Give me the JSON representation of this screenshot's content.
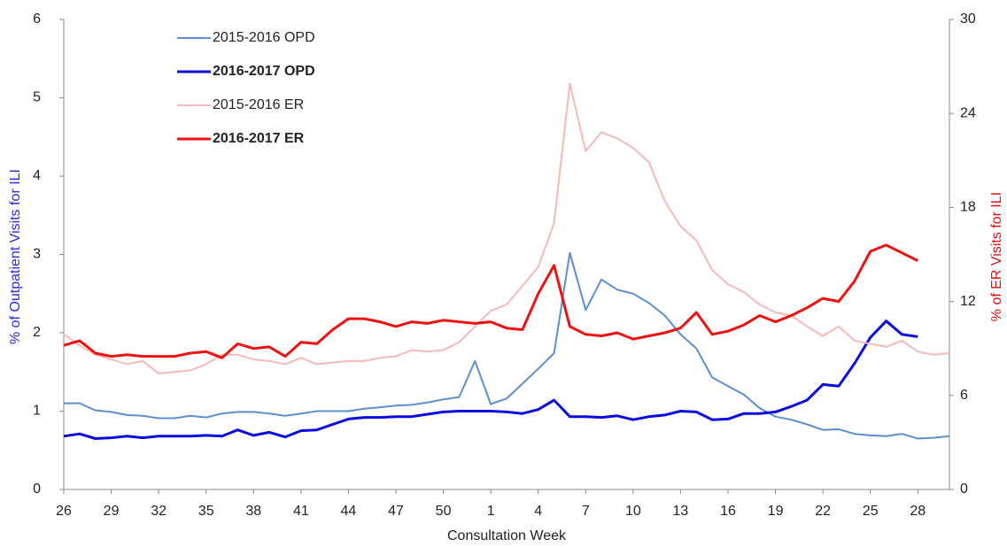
{
  "chart_data": {
    "type": "line",
    "x_label": "Consultation Week",
    "y_label": "% of Outpatient Visits for ILI",
    "y2_label": "% of ER Visits for ILI",
    "categories": [
      26,
      null,
      null,
      29,
      null,
      null,
      32,
      null,
      null,
      35,
      null,
      null,
      38,
      null,
      null,
      41,
      null,
      null,
      44,
      null,
      null,
      47,
      null,
      null,
      50,
      null,
      null,
      1,
      null,
      null,
      4,
      null,
      null,
      7,
      null,
      null,
      10,
      null,
      null,
      13,
      null,
      null,
      16,
      null,
      null,
      19,
      null,
      null,
      22,
      null,
      null,
      25,
      null,
      null,
      28,
      null,
      null
    ],
    "ylim": [
      0,
      6
    ],
    "yticks": [
      0,
      1,
      2,
      3,
      4,
      5,
      6
    ],
    "y2lim": [
      0,
      30
    ],
    "y2ticks": [
      0,
      6,
      12,
      18,
      24,
      30
    ],
    "grid": false,
    "legend": "upper-left",
    "series": [
      {
        "name": "2015-2016 OPD",
        "color": "#5b8fd0",
        "width": 2,
        "values": [
          1.1,
          1.1,
          1.01,
          0.99,
          0.95,
          0.94,
          0.91,
          0.91,
          0.94,
          0.92,
          0.97,
          0.99,
          0.99,
          0.97,
          0.94,
          0.97,
          1.0,
          1.0,
          1.0,
          1.03,
          1.05,
          1.07,
          1.08,
          1.11,
          1.15,
          1.18,
          1.64,
          1.09,
          1.16,
          1.35,
          1.54,
          1.74,
          3.02,
          2.29,
          2.68,
          2.55,
          2.5,
          2.38,
          2.22,
          1.98,
          1.8,
          1.43,
          1.32,
          1.21,
          1.04,
          0.93,
          0.89,
          0.83,
          0.76,
          0.77,
          0.71,
          0.69,
          0.68,
          0.71,
          0.65,
          0.66,
          0.68
        ]
      },
      {
        "name": "2016-2017 OPD",
        "color": "#0a0ae0",
        "width": 3,
        "values": [
          0.68,
          0.71,
          0.65,
          0.66,
          0.68,
          0.66,
          0.68,
          0.68,
          0.68,
          0.69,
          0.68,
          0.76,
          0.69,
          0.73,
          0.67,
          0.75,
          0.76,
          0.83,
          0.9,
          0.92,
          0.92,
          0.93,
          0.93,
          0.96,
          0.99,
          1.0,
          1.0,
          1.0,
          0.99,
          0.97,
          1.02,
          1.14,
          0.93,
          0.93,
          0.92,
          0.94,
          0.89,
          0.93,
          0.95,
          1.0,
          0.99,
          0.89,
          0.9,
          0.97,
          0.97,
          0.99,
          1.06,
          1.14,
          1.34,
          1.32,
          1.61,
          1.94,
          2.15,
          1.98,
          1.95,
          null,
          null
        ]
      },
      {
        "name": "2015-2016 ER",
        "color": "#f7b8b8",
        "width": 2,
        "axis": "y2",
        "values": [
          9.9,
          9.2,
          8.6,
          8.3,
          8.0,
          8.2,
          7.4,
          7.5,
          7.6,
          8.0,
          8.6,
          8.6,
          8.3,
          8.2,
          8.0,
          8.4,
          8.0,
          8.1,
          8.2,
          8.2,
          8.4,
          8.5,
          8.9,
          8.8,
          8.9,
          9.4,
          10.4,
          11.4,
          11.8,
          13.0,
          14.2,
          17.0,
          25.9,
          21.6,
          22.8,
          22.4,
          21.8,
          20.9,
          18.4,
          16.8,
          15.9,
          14.0,
          13.1,
          12.6,
          11.8,
          11.3,
          11.1,
          10.4,
          9.8,
          10.4,
          9.5,
          9.3,
          9.1,
          9.5,
          8.8,
          8.6,
          8.7
        ]
      },
      {
        "name": "2016-2017 ER",
        "color": "#ee1111",
        "width": 3,
        "axis": "y2",
        "values": [
          9.2,
          9.5,
          8.7,
          8.5,
          8.6,
          8.5,
          8.5,
          8.5,
          8.7,
          8.8,
          8.4,
          9.3,
          9.0,
          9.1,
          8.5,
          9.4,
          9.3,
          10.2,
          10.9,
          10.9,
          10.7,
          10.4,
          10.7,
          10.6,
          10.8,
          10.7,
          10.6,
          10.7,
          10.3,
          10.2,
          12.5,
          14.3,
          10.4,
          9.9,
          9.8,
          10.0,
          9.6,
          9.8,
          10.0,
          10.3,
          11.3,
          9.9,
          10.1,
          10.5,
          11.1,
          10.7,
          11.1,
          11.6,
          12.2,
          12.0,
          13.3,
          15.2,
          15.6,
          15.1,
          14.6,
          null,
          null
        ]
      }
    ]
  }
}
